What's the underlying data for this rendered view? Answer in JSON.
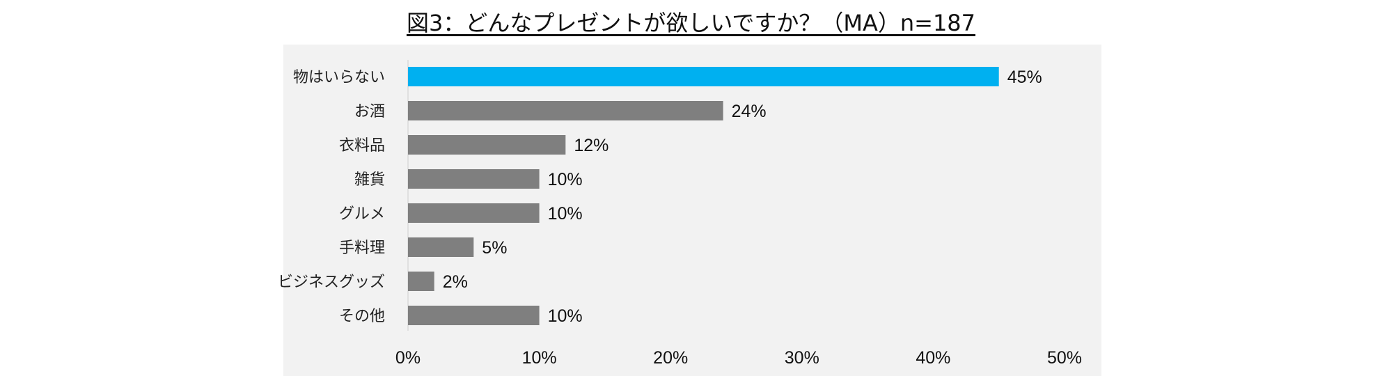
{
  "chart_data": {
    "type": "bar",
    "orientation": "horizontal",
    "title": "図3：どんなプレゼントが欲しいですか？（MA）n=187",
    "categories": [
      "物はいらない",
      "お酒",
      "衣料品",
      "雑貨",
      "グルメ",
      "手料理",
      "ビジネスグッズ",
      "その他"
    ],
    "values": [
      45,
      24,
      12,
      10,
      10,
      5,
      2,
      10
    ],
    "value_labels": [
      "45%",
      "24%",
      "12%",
      "10%",
      "10%",
      "5%",
      "2%",
      "10%"
    ],
    "xlim": [
      0,
      50
    ],
    "x_ticks": [
      0,
      10,
      20,
      30,
      40,
      50
    ],
    "x_tick_labels": [
      "0%",
      "10%",
      "20%",
      "30%",
      "40%",
      "50%"
    ],
    "grid": false,
    "legend": "none",
    "colors": {
      "highlight": "#00B0F0",
      "bar": "#7F7F7F",
      "plot_background": "#F2F2F2",
      "axis": "#D9D9D9"
    },
    "highlight_index": 0
  }
}
